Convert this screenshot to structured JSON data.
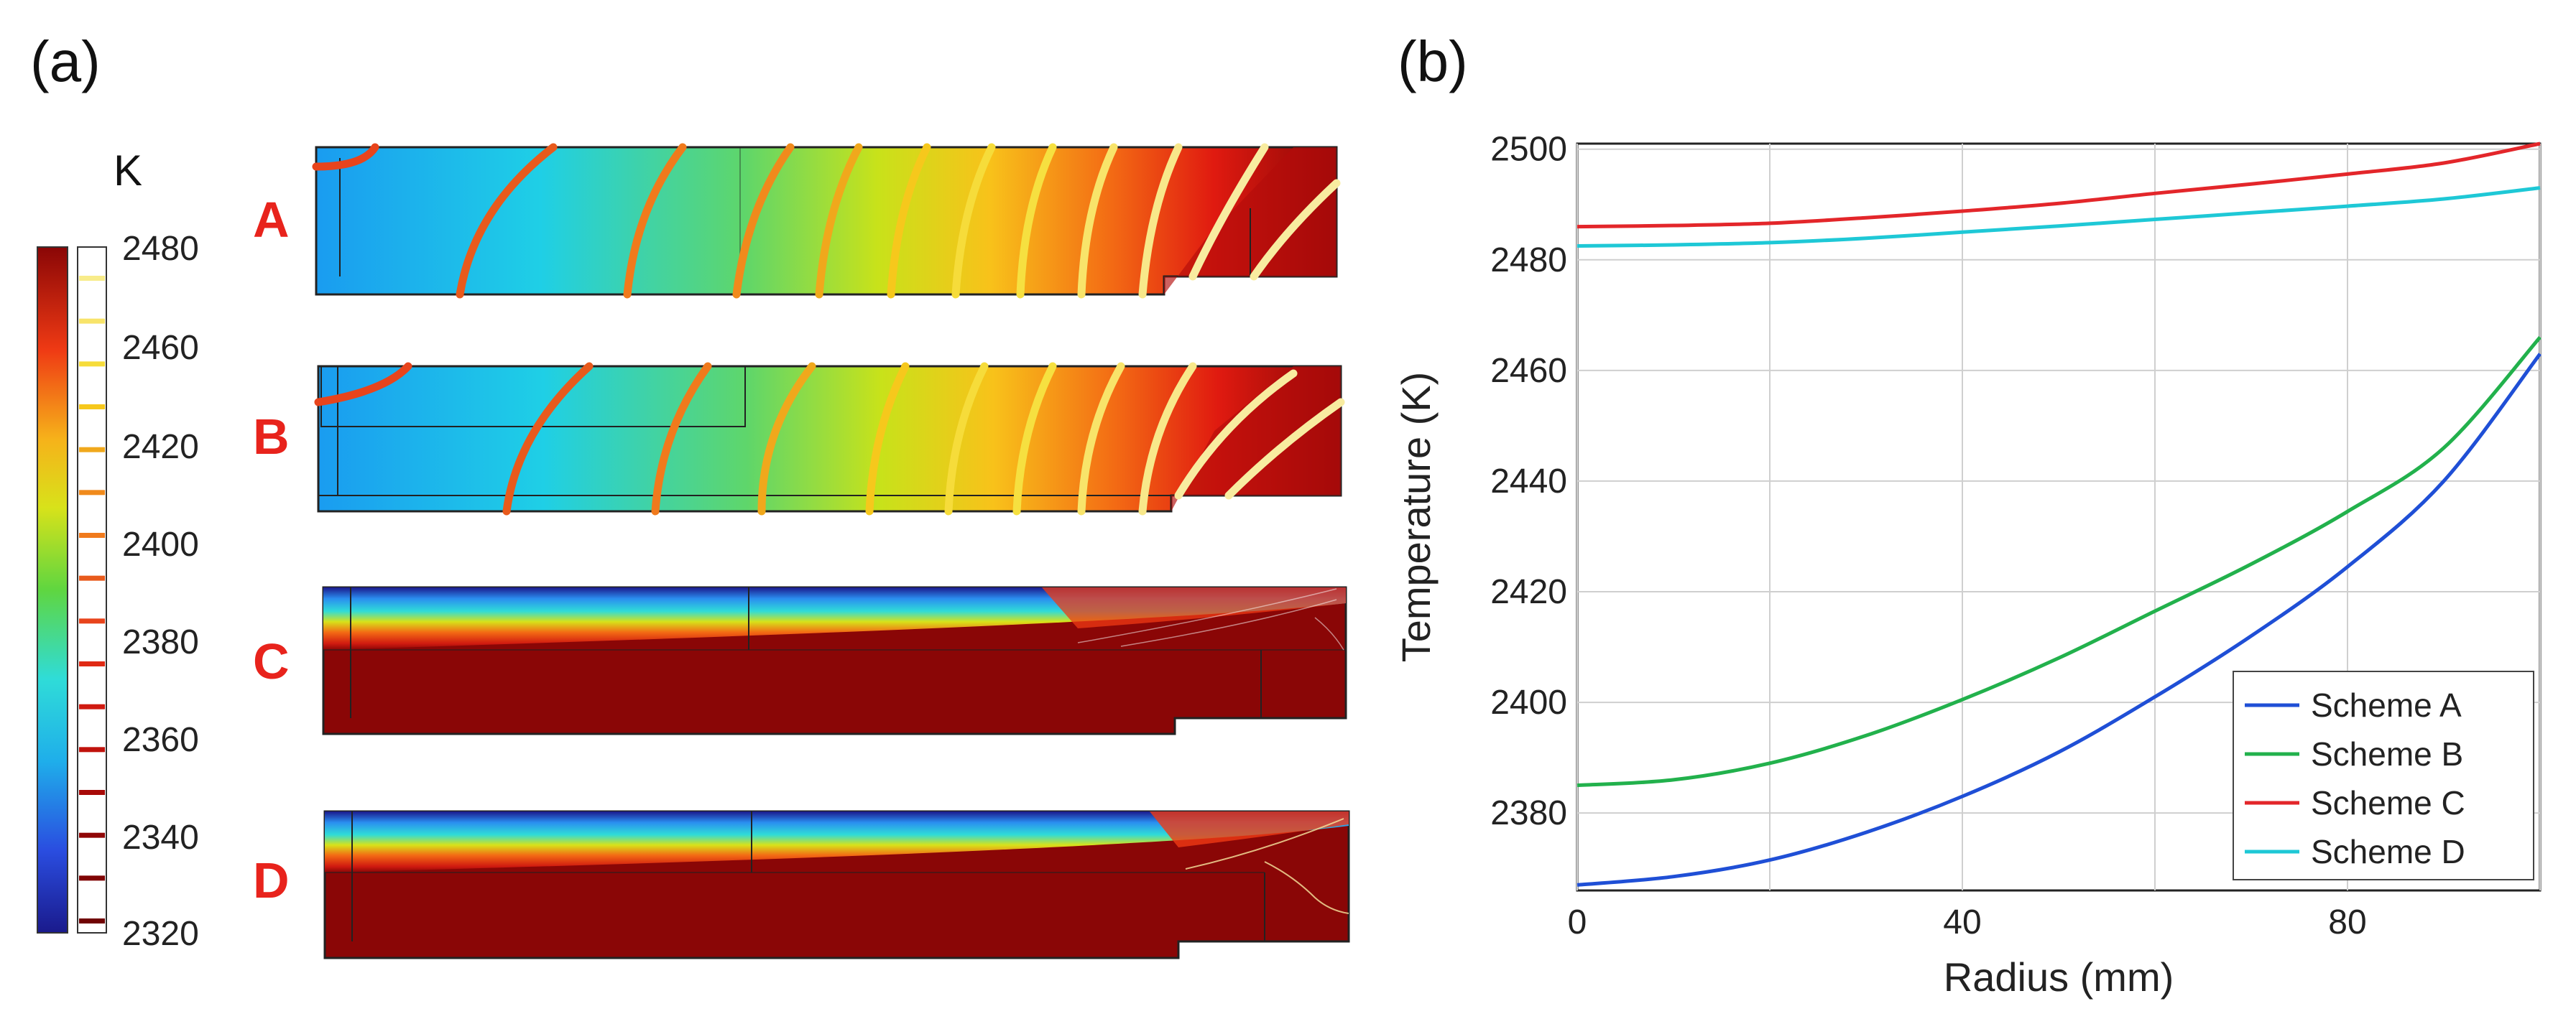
{
  "panels": {
    "a": "(a)",
    "b": "(b)"
  },
  "colorbar": {
    "unit": "K",
    "ticks": [
      "2480",
      "2460",
      "2420",
      "2400",
      "2380",
      "2360",
      "2340",
      "2320"
    ],
    "range": [
      2320,
      2480
    ]
  },
  "schemes": [
    "A",
    "B",
    "C",
    "D"
  ],
  "chart_data": {
    "type": "line",
    "xlabel": "Radius (mm)",
    "ylabel": "Temperature (K)",
    "xlim": [
      0,
      100
    ],
    "ylim": [
      2366,
      2501
    ],
    "xticks": [
      "0",
      "40",
      "80"
    ],
    "yticks": [
      "2380",
      "2400",
      "2420",
      "2440",
      "2460",
      "2480",
      "2500"
    ],
    "grid": true,
    "legend_position": "bottom-right",
    "x": [
      0,
      10,
      20,
      30,
      40,
      50,
      60,
      70,
      80,
      90,
      100
    ],
    "series": [
      {
        "name": "Scheme A",
        "color": "#1f4fd6",
        "values": [
          2367,
          2368.5,
          2371.5,
          2376.5,
          2383,
          2391,
          2401,
          2412,
          2424.5,
          2440,
          2463
        ]
      },
      {
        "name": "Scheme B",
        "color": "#22b14c",
        "values": [
          2385,
          2386,
          2389,
          2394,
          2400.5,
          2408,
          2416.5,
          2425,
          2434.5,
          2446,
          2466
        ]
      },
      {
        "name": "Scheme C",
        "color": "#e3262a",
        "values": [
          2486,
          2486.2,
          2486.6,
          2487.6,
          2488.8,
          2490.2,
          2492,
          2493.7,
          2495.5,
          2497.5,
          2501
        ]
      },
      {
        "name": "Scheme D",
        "color": "#1ec8d6",
        "values": [
          2482.5,
          2482.7,
          2483.1,
          2483.9,
          2485,
          2486.1,
          2487.3,
          2488.5,
          2489.7,
          2491,
          2493
        ]
      }
    ]
  }
}
